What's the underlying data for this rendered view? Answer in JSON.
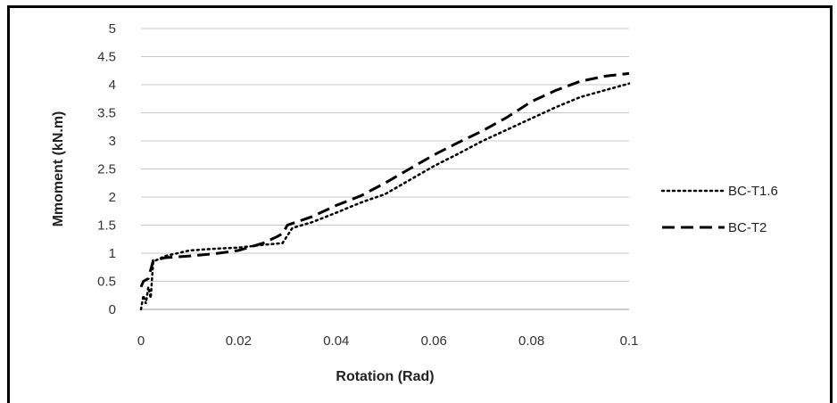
{
  "chart_data": {
    "type": "line",
    "title": "",
    "xlabel": "Rotation (Rad)",
    "ylabel": "Mmoment (kN.m)",
    "xlim": [
      0,
      0.1
    ],
    "ylim": [
      0,
      5
    ],
    "x_ticks": [
      "0",
      "0.02",
      "0.04",
      "0.06",
      "0.08",
      "0.1"
    ],
    "y_ticks": [
      "0",
      "0.5",
      "1",
      "1.5",
      "2",
      "2.5",
      "3",
      "3.5",
      "4",
      "4.5",
      "5"
    ],
    "grid": "horizontal",
    "legend_position": "right",
    "series": [
      {
        "name": "BC-T1.6",
        "style": "dotted",
        "color": "#000000",
        "points": [
          [
            0,
            0
          ],
          [
            0.0005,
            0.25
          ],
          [
            0.001,
            0.1
          ],
          [
            0.0015,
            0.4
          ],
          [
            0.002,
            0.2
          ],
          [
            0.0025,
            0.85
          ],
          [
            0.005,
            0.95
          ],
          [
            0.01,
            1.05
          ],
          [
            0.015,
            1.08
          ],
          [
            0.02,
            1.1
          ],
          [
            0.025,
            1.15
          ],
          [
            0.029,
            1.18
          ],
          [
            0.031,
            1.45
          ],
          [
            0.035,
            1.55
          ],
          [
            0.04,
            1.72
          ],
          [
            0.045,
            1.9
          ],
          [
            0.05,
            2.05
          ],
          [
            0.055,
            2.3
          ],
          [
            0.06,
            2.55
          ],
          [
            0.065,
            2.77
          ],
          [
            0.07,
            3.0
          ],
          [
            0.075,
            3.2
          ],
          [
            0.08,
            3.4
          ],
          [
            0.085,
            3.6
          ],
          [
            0.09,
            3.78
          ],
          [
            0.095,
            3.9
          ],
          [
            0.1,
            4.02
          ]
        ]
      },
      {
        "name": "BC-T2",
        "style": "dashed",
        "color": "#000000",
        "points": [
          [
            0,
            0.4
          ],
          [
            0.0005,
            0.5
          ],
          [
            0.0015,
            0.55
          ],
          [
            0.0025,
            0.87
          ],
          [
            0.005,
            0.92
          ],
          [
            0.01,
            0.95
          ],
          [
            0.015,
            0.99
          ],
          [
            0.02,
            1.05
          ],
          [
            0.025,
            1.18
          ],
          [
            0.028,
            1.3
          ],
          [
            0.029,
            1.35
          ],
          [
            0.03,
            1.5
          ],
          [
            0.035,
            1.65
          ],
          [
            0.04,
            1.85
          ],
          [
            0.045,
            2.02
          ],
          [
            0.05,
            2.25
          ],
          [
            0.055,
            2.5
          ],
          [
            0.06,
            2.75
          ],
          [
            0.065,
            2.97
          ],
          [
            0.07,
            3.18
          ],
          [
            0.075,
            3.42
          ],
          [
            0.08,
            3.7
          ],
          [
            0.085,
            3.9
          ],
          [
            0.09,
            4.06
          ],
          [
            0.095,
            4.15
          ],
          [
            0.1,
            4.2
          ]
        ]
      }
    ]
  }
}
